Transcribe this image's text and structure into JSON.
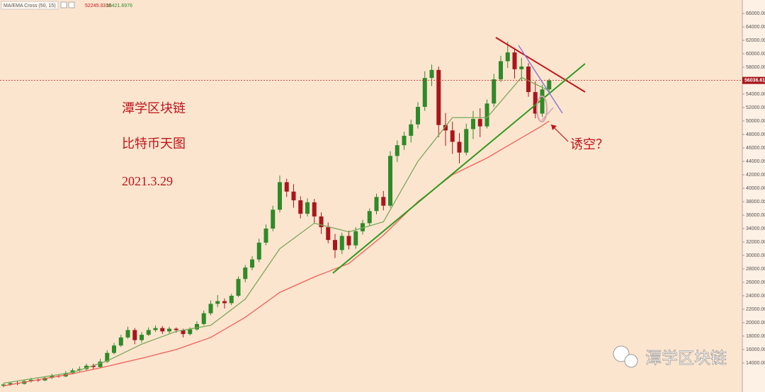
{
  "chart_data": {
    "type": "candlestick",
    "indicator": "MA/EMA Cross (50, 15)",
    "indicator_values": [
      52245.3318,
      55421.6976
    ],
    "indicator_colors": [
      "#c0141a",
      "#2e8b2e"
    ],
    "ylim": [
      10000,
      68000
    ],
    "yticks": [
      {
        "value": 14000,
        "label": "14000.00"
      },
      {
        "value": 16000,
        "label": "16000.00"
      },
      {
        "value": 18000,
        "label": "18000.00"
      },
      {
        "value": 20000,
        "label": "20000.00"
      },
      {
        "value": 22000,
        "label": "22000.00"
      },
      {
        "value": 24000,
        "label": "24000.00"
      },
      {
        "value": 26000,
        "label": "26000.00"
      },
      {
        "value": 28000,
        "label": "28000.00"
      },
      {
        "value": 30000,
        "label": "30000.00"
      },
      {
        "value": 32000,
        "label": "32000.00"
      },
      {
        "value": 34000,
        "label": "34000.00"
      },
      {
        "value": 36000,
        "label": "36000.00"
      },
      {
        "value": 38000,
        "label": "38000.00"
      },
      {
        "value": 40000,
        "label": "40000.00"
      },
      {
        "value": 42000,
        "label": "42000.00"
      },
      {
        "value": 44000,
        "label": "44000.00"
      },
      {
        "value": 46000,
        "label": "46000.00"
      },
      {
        "value": 48000,
        "label": "48000.00"
      },
      {
        "value": 50000,
        "label": "50000.00"
      },
      {
        "value": 52000,
        "label": "52000.00"
      },
      {
        "value": 54000,
        "label": "54000.00"
      },
      {
        "value": 58000,
        "label": "58000.00"
      },
      {
        "value": 60000,
        "label": "60000.00"
      },
      {
        "value": 62000,
        "label": "62000.00"
      },
      {
        "value": 64000,
        "label": "64000.00"
      },
      {
        "value": 66000,
        "label": "66000.00"
      }
    ],
    "last_price": 56036.61,
    "up_color": "#2f8a28",
    "down_color": "#a8161b",
    "open": [
      10600,
      10800,
      11000,
      10900,
      11300,
      11500,
      11400,
      11800,
      12100,
      12000,
      12500,
      12900,
      13100,
      13600,
      13400,
      14200,
      15500,
      16600,
      17800,
      18900,
      17400,
      18200,
      18900,
      19200,
      18700,
      19100,
      18900,
      18300,
      19000,
      19800,
      21400,
      22800,
      23200,
      22900,
      24000,
      26500,
      28200,
      29400,
      31900,
      34000,
      36800,
      40900,
      39500,
      38200,
      36200,
      37900,
      35800,
      34200,
      32300,
      30800,
      32900,
      31500,
      33600,
      34800,
      36600,
      38700,
      37400,
      44800,
      46400,
      47800,
      49500,
      52100,
      56400,
      57600,
      49400,
      48600,
      46900,
      45300,
      48800,
      50300,
      49200,
      52600,
      56200,
      58900,
      60200,
      57700,
      58100,
      54300,
      51100,
      54700
    ],
    "high": [
      11000,
      11200,
      11300,
      11500,
      11800,
      11700,
      12000,
      12400,
      12300,
      12800,
      13200,
      13500,
      13900,
      13900,
      14600,
      15900,
      17000,
      18200,
      19400,
      19200,
      18600,
      19300,
      19600,
      19500,
      19400,
      19300,
      19100,
      19300,
      20200,
      21800,
      23300,
      24100,
      23600,
      24300,
      26900,
      28600,
      29900,
      32500,
      34600,
      37400,
      41900,
      41400,
      40600,
      38800,
      38500,
      38400,
      36400,
      34900,
      33200,
      33400,
      33700,
      34200,
      35300,
      37000,
      39200,
      39600,
      45500,
      47100,
      48400,
      50200,
      52800,
      57400,
      58400,
      58100,
      51200,
      49900,
      48200,
      49600,
      51500,
      51900,
      53200,
      57000,
      59700,
      61800,
      60900,
      59400,
      58600,
      55900,
      55400,
      56300
    ],
    "low": [
      10400,
      10600,
      10700,
      10800,
      11100,
      11200,
      11300,
      11600,
      11800,
      11900,
      12300,
      12700,
      12900,
      13100,
      13200,
      14000,
      15300,
      16400,
      17600,
      16800,
      17000,
      18000,
      18600,
      18300,
      18400,
      18500,
      17800,
      18100,
      18800,
      19600,
      21100,
      22300,
      22100,
      22600,
      23800,
      26000,
      27800,
      29000,
      31500,
      33600,
      36400,
      38700,
      37100,
      35500,
      35800,
      34800,
      33200,
      31800,
      29600,
      30200,
      30900,
      31000,
      33100,
      34400,
      36100,
      36700,
      37100,
      43900,
      45700,
      46800,
      48900,
      51500,
      55200,
      47600,
      46300,
      45100,
      43700,
      44900,
      47300,
      47600,
      48900,
      52100,
      55800,
      57900,
      56300,
      55900,
      53600,
      50400,
      50600,
      54200
    ],
    "close": [
      10800,
      11000,
      10900,
      11300,
      11500,
      11400,
      11800,
      12100,
      12000,
      12500,
      12900,
      13100,
      13600,
      13400,
      14200,
      15500,
      16600,
      17800,
      18900,
      17400,
      18200,
      18900,
      19200,
      18700,
      19100,
      18900,
      18300,
      19000,
      19800,
      21400,
      22800,
      23200,
      22900,
      24000,
      26500,
      28200,
      29400,
      31900,
      34000,
      36800,
      40900,
      39500,
      38200,
      36200,
      37900,
      35800,
      34200,
      32300,
      30800,
      32900,
      31500,
      33600,
      34800,
      36600,
      38700,
      37400,
      44800,
      46400,
      47800,
      49500,
      52100,
      56400,
      57600,
      49400,
      48600,
      46900,
      45300,
      48800,
      50300,
      49200,
      52600,
      56200,
      58900,
      60200,
      57700,
      58100,
      54300,
      51100,
      54700,
      56036
    ],
    "lines": [
      {
        "color": "#f0605a",
        "values": [
          10600,
          10780,
          10960,
          11140,
          11320,
          11500,
          11680,
          11860,
          12040,
          12220,
          12400,
          12620,
          12840,
          13060,
          13280,
          13500,
          13740,
          13980,
          14220,
          14460,
          14700,
          14960,
          15220,
          15480,
          15740,
          16000,
          16360,
          16720,
          17080,
          17440,
          17800,
          18400,
          19000,
          19600,
          20200,
          20800,
          21540,
          22280,
          23020,
          23760,
          24500,
          24960,
          25420,
          25880,
          26340,
          26800,
          27200,
          27600,
          28000,
          28400,
          28800,
          29640,
          30480,
          31320,
          32160,
          33000,
          34000,
          35000,
          36000,
          37000,
          38000,
          38800,
          39600,
          40400,
          41200,
          42000,
          42500,
          43000,
          43500,
          44000,
          44500,
          45100,
          45700,
          46300,
          46900,
          47500,
          48100,
          48700,
          49300,
          50000
        ]
      },
      {
        "color": "#7aa85a",
        "values": [
          11000,
          11160,
          11320,
          11480,
          11640,
          11800,
          11960,
          12120,
          12280,
          12440,
          12600,
          12940,
          13280,
          13620,
          13960,
          14300,
          14800,
          15300,
          15800,
          16300,
          16800,
          17180,
          17560,
          17940,
          18320,
          18700,
          18880,
          19060,
          19240,
          19420,
          19600,
          20380,
          21160,
          21940,
          22720,
          23500,
          25000,
          26500,
          28000,
          29500,
          31000,
          31760,
          32520,
          33280,
          34040,
          34800,
          34540,
          34280,
          34020,
          33760,
          33500,
          33800,
          34100,
          34400,
          34700,
          35000,
          36800,
          38600,
          40400,
          42200,
          44000,
          45300,
          46600,
          47900,
          49200,
          50500,
          50500,
          50500,
          50500,
          50500,
          50500,
          51700,
          52900,
          54100,
          55300,
          56500,
          56000,
          55500,
          55000,
          54500
        ]
      }
    ],
    "notes": [
      "潭学区块链",
      "比特币天图",
      "2021.3.29"
    ],
    "callout": "诱空？",
    "watermark": "潭学区块链"
  }
}
